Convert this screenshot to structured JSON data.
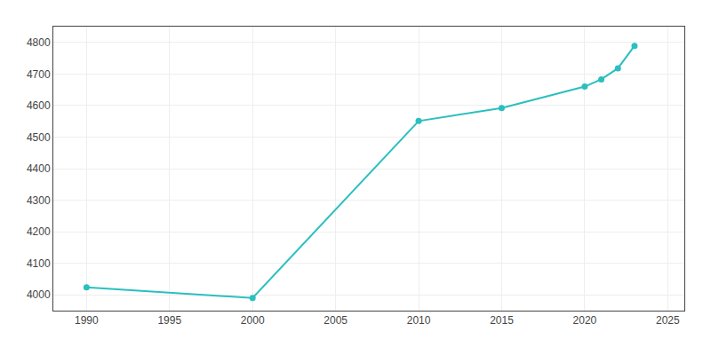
{
  "chart_data": {
    "type": "line",
    "x": [
      1990,
      2000,
      2010,
      2015,
      2020,
      2021,
      2022,
      2023
    ],
    "values": [
      4024,
      3990,
      4551,
      4592,
      4660,
      4683,
      4718,
      4789
    ],
    "color": "#2bbfbf",
    "marker": "circle",
    "xlim": [
      1988,
      2026
    ],
    "ylim": [
      3950,
      4850
    ],
    "xticks": [
      1990,
      1995,
      2000,
      2005,
      2010,
      2015,
      2020,
      2025
    ],
    "yticks": [
      4000,
      4100,
      4200,
      4300,
      4400,
      4500,
      4600,
      4700,
      4800
    ],
    "grid": true
  }
}
